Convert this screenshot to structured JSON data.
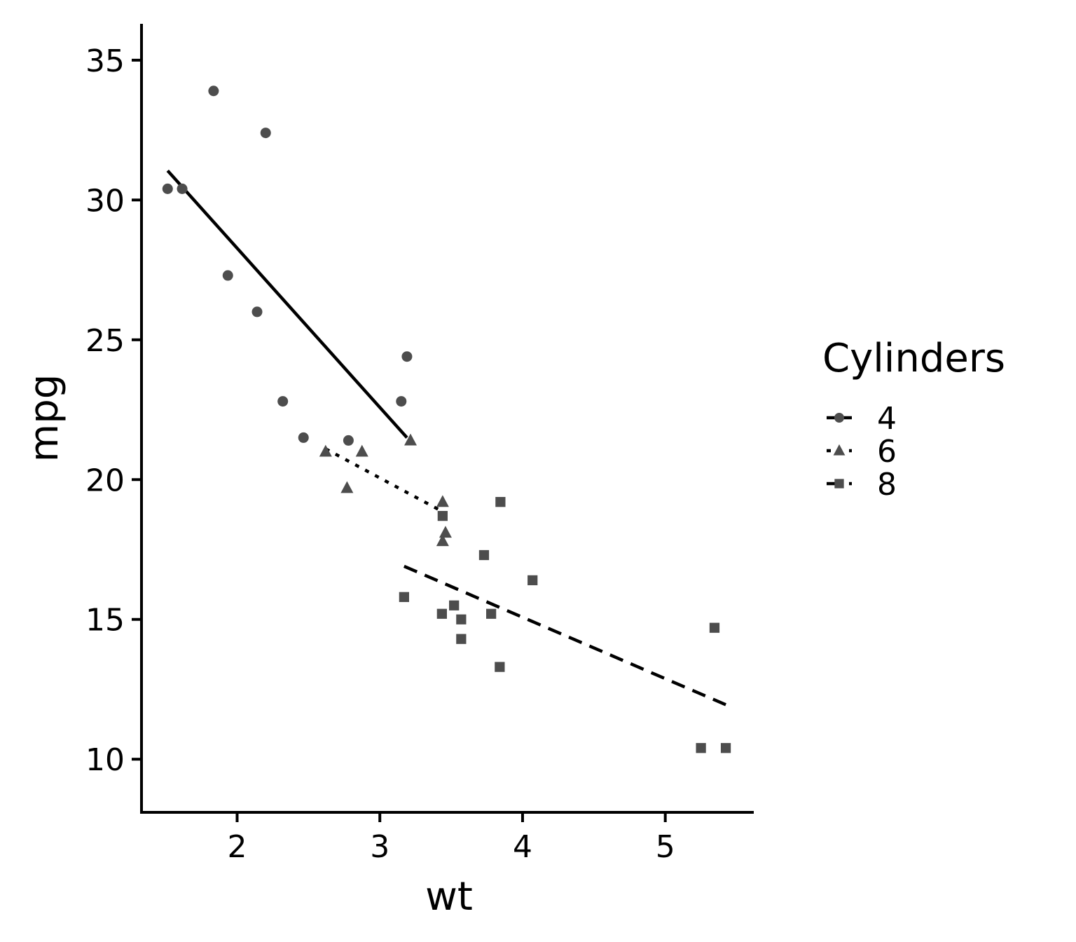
{
  "chart_data": {
    "type": "scatter",
    "title": "",
    "xlabel": "wt",
    "ylabel": "mpg",
    "xlim": [
      1.33,
      5.62
    ],
    "ylim": [
      8.1,
      36.3
    ],
    "x_ticks": [
      2,
      3,
      4,
      5
    ],
    "y_ticks": [
      10,
      15,
      20,
      25,
      30,
      35
    ],
    "grid": false,
    "legend": {
      "title": "Cylinders",
      "placement": "right"
    },
    "point_color": "#4d4d4d",
    "line_color": "#000000",
    "series": [
      {
        "name": "4",
        "marker": "circle",
        "linetype": "solid",
        "points": [
          {
            "x": 2.32,
            "y": 22.8
          },
          {
            "x": 3.19,
            "y": 24.4
          },
          {
            "x": 3.15,
            "y": 22.8
          },
          {
            "x": 2.2,
            "y": 32.4
          },
          {
            "x": 1.615,
            "y": 30.4
          },
          {
            "x": 1.835,
            "y": 33.9
          },
          {
            "x": 2.465,
            "y": 21.5
          },
          {
            "x": 1.935,
            "y": 27.3
          },
          {
            "x": 2.14,
            "y": 26.0
          },
          {
            "x": 1.513,
            "y": 30.4
          },
          {
            "x": 2.78,
            "y": 21.4
          }
        ],
        "fit": [
          {
            "x": 1.513,
            "y": 31.05
          },
          {
            "x": 3.19,
            "y": 21.5
          }
        ]
      },
      {
        "name": "6",
        "marker": "triangle",
        "linetype": "dotted",
        "points": [
          {
            "x": 2.62,
            "y": 21.0
          },
          {
            "x": 2.875,
            "y": 21.0
          },
          {
            "x": 3.215,
            "y": 21.4
          },
          {
            "x": 3.46,
            "y": 18.1
          },
          {
            "x": 3.44,
            "y": 19.2
          },
          {
            "x": 3.44,
            "y": 17.8
          },
          {
            "x": 2.77,
            "y": 19.7
          }
        ],
        "fit": [
          {
            "x": 2.62,
            "y": 21.1
          },
          {
            "x": 3.46,
            "y": 18.8
          }
        ]
      },
      {
        "name": "8",
        "marker": "square",
        "linetype": "dashed",
        "points": [
          {
            "x": 3.44,
            "y": 18.7
          },
          {
            "x": 3.57,
            "y": 14.3
          },
          {
            "x": 4.07,
            "y": 16.4
          },
          {
            "x": 3.73,
            "y": 17.3
          },
          {
            "x": 3.78,
            "y": 15.2
          },
          {
            "x": 5.25,
            "y": 10.4
          },
          {
            "x": 5.424,
            "y": 10.4
          },
          {
            "x": 5.345,
            "y": 14.7
          },
          {
            "x": 3.52,
            "y": 15.5
          },
          {
            "x": 3.435,
            "y": 15.2
          },
          {
            "x": 3.84,
            "y": 13.3
          },
          {
            "x": 3.845,
            "y": 19.2
          },
          {
            "x": 3.17,
            "y": 15.8
          },
          {
            "x": 3.57,
            "y": 15.0
          }
        ],
        "fit": [
          {
            "x": 3.17,
            "y": 16.9
          },
          {
            "x": 5.424,
            "y": 11.95
          }
        ]
      }
    ]
  }
}
